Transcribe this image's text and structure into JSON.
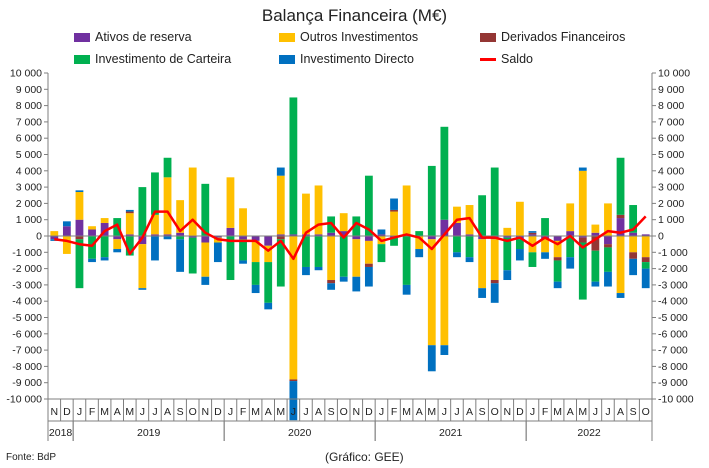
{
  "chart_data": {
    "type": "bar",
    "title": "Balança Financeira (M€)",
    "stacked": true,
    "ylim": [
      -10000,
      10000
    ],
    "yticks": [
      -10000,
      -9000,
      -8000,
      -7000,
      -6000,
      -5000,
      -4000,
      -3000,
      -2000,
      -1000,
      0,
      1000,
      2000,
      3000,
      4000,
      5000,
      6000,
      7000,
      8000,
      9000,
      10000
    ],
    "ytick_labels": [
      "-10 000",
      "-9 000",
      "-8 000",
      "-7 000",
      "-6 000",
      "-5 000",
      "-4 000",
      "-3 000",
      "-2 000",
      "-1 000",
      "0",
      "1 000",
      "2 000",
      "3 000",
      "4 000",
      "5 000",
      "6 000",
      "7 000",
      "8 000",
      "9 000",
      "10 000"
    ],
    "secondary_axis": true,
    "grid": false,
    "legend_position": "top",
    "categories": [
      "N",
      "D",
      "J",
      "F",
      "M",
      "A",
      "M",
      "J",
      "J",
      "A",
      "S",
      "O",
      "N",
      "D",
      "J",
      "F",
      "M",
      "A",
      "M",
      "J",
      "J",
      "A",
      "S",
      "O",
      "N",
      "D",
      "J",
      "F",
      "M",
      "A",
      "M",
      "J",
      "J",
      "A",
      "S",
      "O",
      "N",
      "D",
      "J",
      "F",
      "M",
      "A",
      "M",
      "J",
      "J",
      "A",
      "S",
      "O"
    ],
    "years": [
      {
        "label": "2018",
        "start": 0,
        "end": 1
      },
      {
        "label": "2019",
        "start": 2,
        "end": 13
      },
      {
        "label": "2020",
        "start": 14,
        "end": 25
      },
      {
        "label": "2021",
        "start": 26,
        "end": 37
      },
      {
        "label": "2022",
        "start": 38,
        "end": 47
      }
    ],
    "series": [
      {
        "name": "Ativos de reserva",
        "color": "#7030A0",
        "kind": "bar",
        "values": [
          -200,
          600,
          1000,
          400,
          800,
          -200,
          100,
          -500,
          100,
          100,
          200,
          -100,
          -400,
          -100,
          500,
          -200,
          -300,
          -600,
          100,
          100,
          100,
          100,
          200,
          300,
          -200,
          -300,
          100,
          -100,
          100,
          0,
          -200,
          1000,
          800,
          100,
          -200,
          -200,
          -100,
          -200,
          100,
          -200,
          -300,
          300,
          -100,
          200,
          -500,
          1100,
          200,
          100
        ]
      },
      {
        "name": "Outros Investimentos",
        "color": "#FFC000",
        "kind": "bar",
        "values": [
          300,
          -1100,
          1700,
          200,
          300,
          -600,
          1300,
          -2700,
          1200,
          3500,
          2000,
          4200,
          -2100,
          -300,
          3100,
          1700,
          -1300,
          -1000,
          3600,
          -8800,
          2500,
          3000,
          -2700,
          1100,
          -2300,
          -1400,
          -500,
          1500,
          3000,
          -800,
          -6500,
          -6700,
          1000,
          1800,
          -3000,
          -2500,
          500,
          2100,
          -1000,
          -800,
          -1000,
          1700,
          4000,
          500,
          2000,
          -3500,
          -1000,
          -1300
        ]
      },
      {
        "name": "Derivados Financeiros",
        "color": "#943634",
        "kind": "bar",
        "values": [
          0,
          0,
          -200,
          0,
          0,
          0,
          100,
          0,
          0,
          0,
          0,
          0,
          0,
          0,
          0,
          0,
          0,
          0,
          -200,
          -100,
          0,
          0,
          -200,
          0,
          0,
          -200,
          0,
          100,
          0,
          0,
          0,
          0,
          0,
          0,
          0,
          -200,
          0,
          0,
          100,
          0,
          -200,
          0,
          -300,
          -900,
          -200,
          200,
          -400,
          -300
        ]
      },
      {
        "name": "Investimento de Carteira",
        "color": "#00B050",
        "kind": "bar",
        "values": [
          0,
          0,
          -3000,
          -1400,
          -1300,
          1100,
          -1200,
          3000,
          2600,
          1200,
          -200,
          -2200,
          3200,
          0,
          -2700,
          -1300,
          -1400,
          -2500,
          -2900,
          8400,
          -1900,
          -1900,
          1000,
          -2500,
          1200,
          3700,
          -1100,
          -500,
          -3000,
          300,
          4300,
          5700,
          -1000,
          -1300,
          2500,
          4200,
          -2000,
          -600,
          -900,
          1100,
          -1300,
          -1300,
          -3500,
          -1900,
          -1500,
          3500,
          1700,
          -400
        ]
      },
      {
        "name": "Investimento Directo",
        "color": "#0070C0",
        "kind": "bar",
        "values": [
          -100,
          300,
          100,
          -200,
          -200,
          -200,
          100,
          -100,
          -1500,
          -200,
          -2000,
          0,
          -500,
          -1200,
          0,
          -200,
          -500,
          -400,
          500,
          -2400,
          -500,
          -200,
          -400,
          -300,
          -900,
          -1200,
          300,
          700,
          -600,
          -500,
          -1600,
          -600,
          -300,
          -300,
          -600,
          -1200,
          -600,
          -700,
          100,
          -400,
          -400,
          -700,
          200,
          -300,
          -900,
          -300,
          -1000,
          -1200
        ]
      },
      {
        "name": "Saldo",
        "color": "#FF0000",
        "kind": "line",
        "values": [
          -200,
          -300,
          -500,
          -600,
          300,
          700,
          -1100,
          -100,
          1500,
          1500,
          300,
          1000,
          200,
          -200,
          -300,
          -300,
          -300,
          -900,
          -300,
          -1400,
          200,
          700,
          800,
          -100,
          800,
          400,
          -300,
          -100,
          100,
          -100,
          -800,
          100,
          1000,
          1100,
          -100,
          -100,
          -300,
          -100,
          -600,
          -100,
          -500,
          0,
          -700,
          -200,
          300,
          200,
          400,
          1200
        ]
      }
    ]
  },
  "footer": {
    "source": "Fonte: BdP",
    "credit": "(Gráfico: GEE)"
  }
}
